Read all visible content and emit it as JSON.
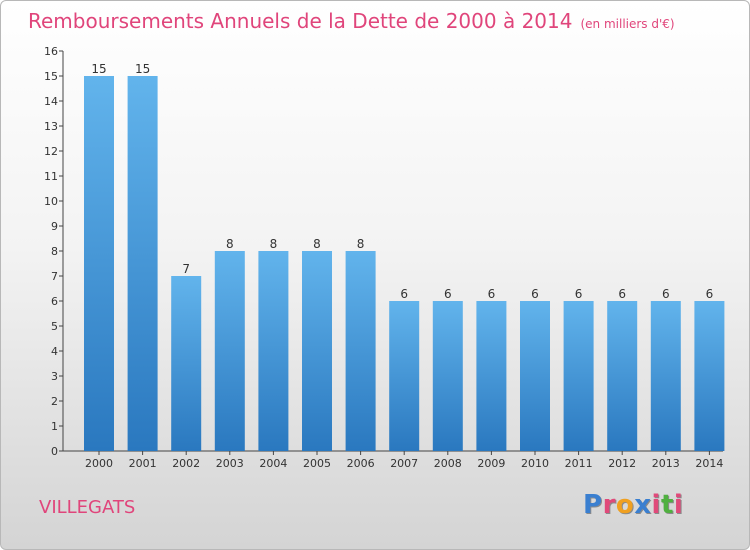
{
  "chart_data": {
    "type": "bar",
    "title": "Remboursements Annuels de la Dette de 2000 à 2014",
    "subtitle": "(en milliers d'€)",
    "categories": [
      "2000",
      "2001",
      "2002",
      "2003",
      "2004",
      "2005",
      "2006",
      "2007",
      "2008",
      "2009",
      "2010",
      "2011",
      "2012",
      "2013",
      "2014"
    ],
    "values": [
      15,
      15,
      7,
      8,
      8,
      8,
      8,
      6,
      6,
      6,
      6,
      6,
      6,
      6,
      6
    ],
    "ylim": [
      0,
      16
    ],
    "yticks": [
      "0",
      "1",
      "2",
      "3",
      "4",
      "5",
      "6",
      "7",
      "8",
      "9",
      "10",
      "11",
      "12",
      "13",
      "14",
      "15",
      "16"
    ],
    "grid": false,
    "bar_color": "#3a8fd4"
  },
  "commune": "VILLEGATS",
  "logo": {
    "letters": [
      "P",
      "r",
      "o",
      "x",
      "i",
      "t",
      "i"
    ],
    "colors": [
      "#3a7fd0",
      "#e04a7a",
      "#f0a020",
      "#3a7fd0",
      "#e04a7a",
      "#50b040",
      "#e04a7a"
    ]
  }
}
